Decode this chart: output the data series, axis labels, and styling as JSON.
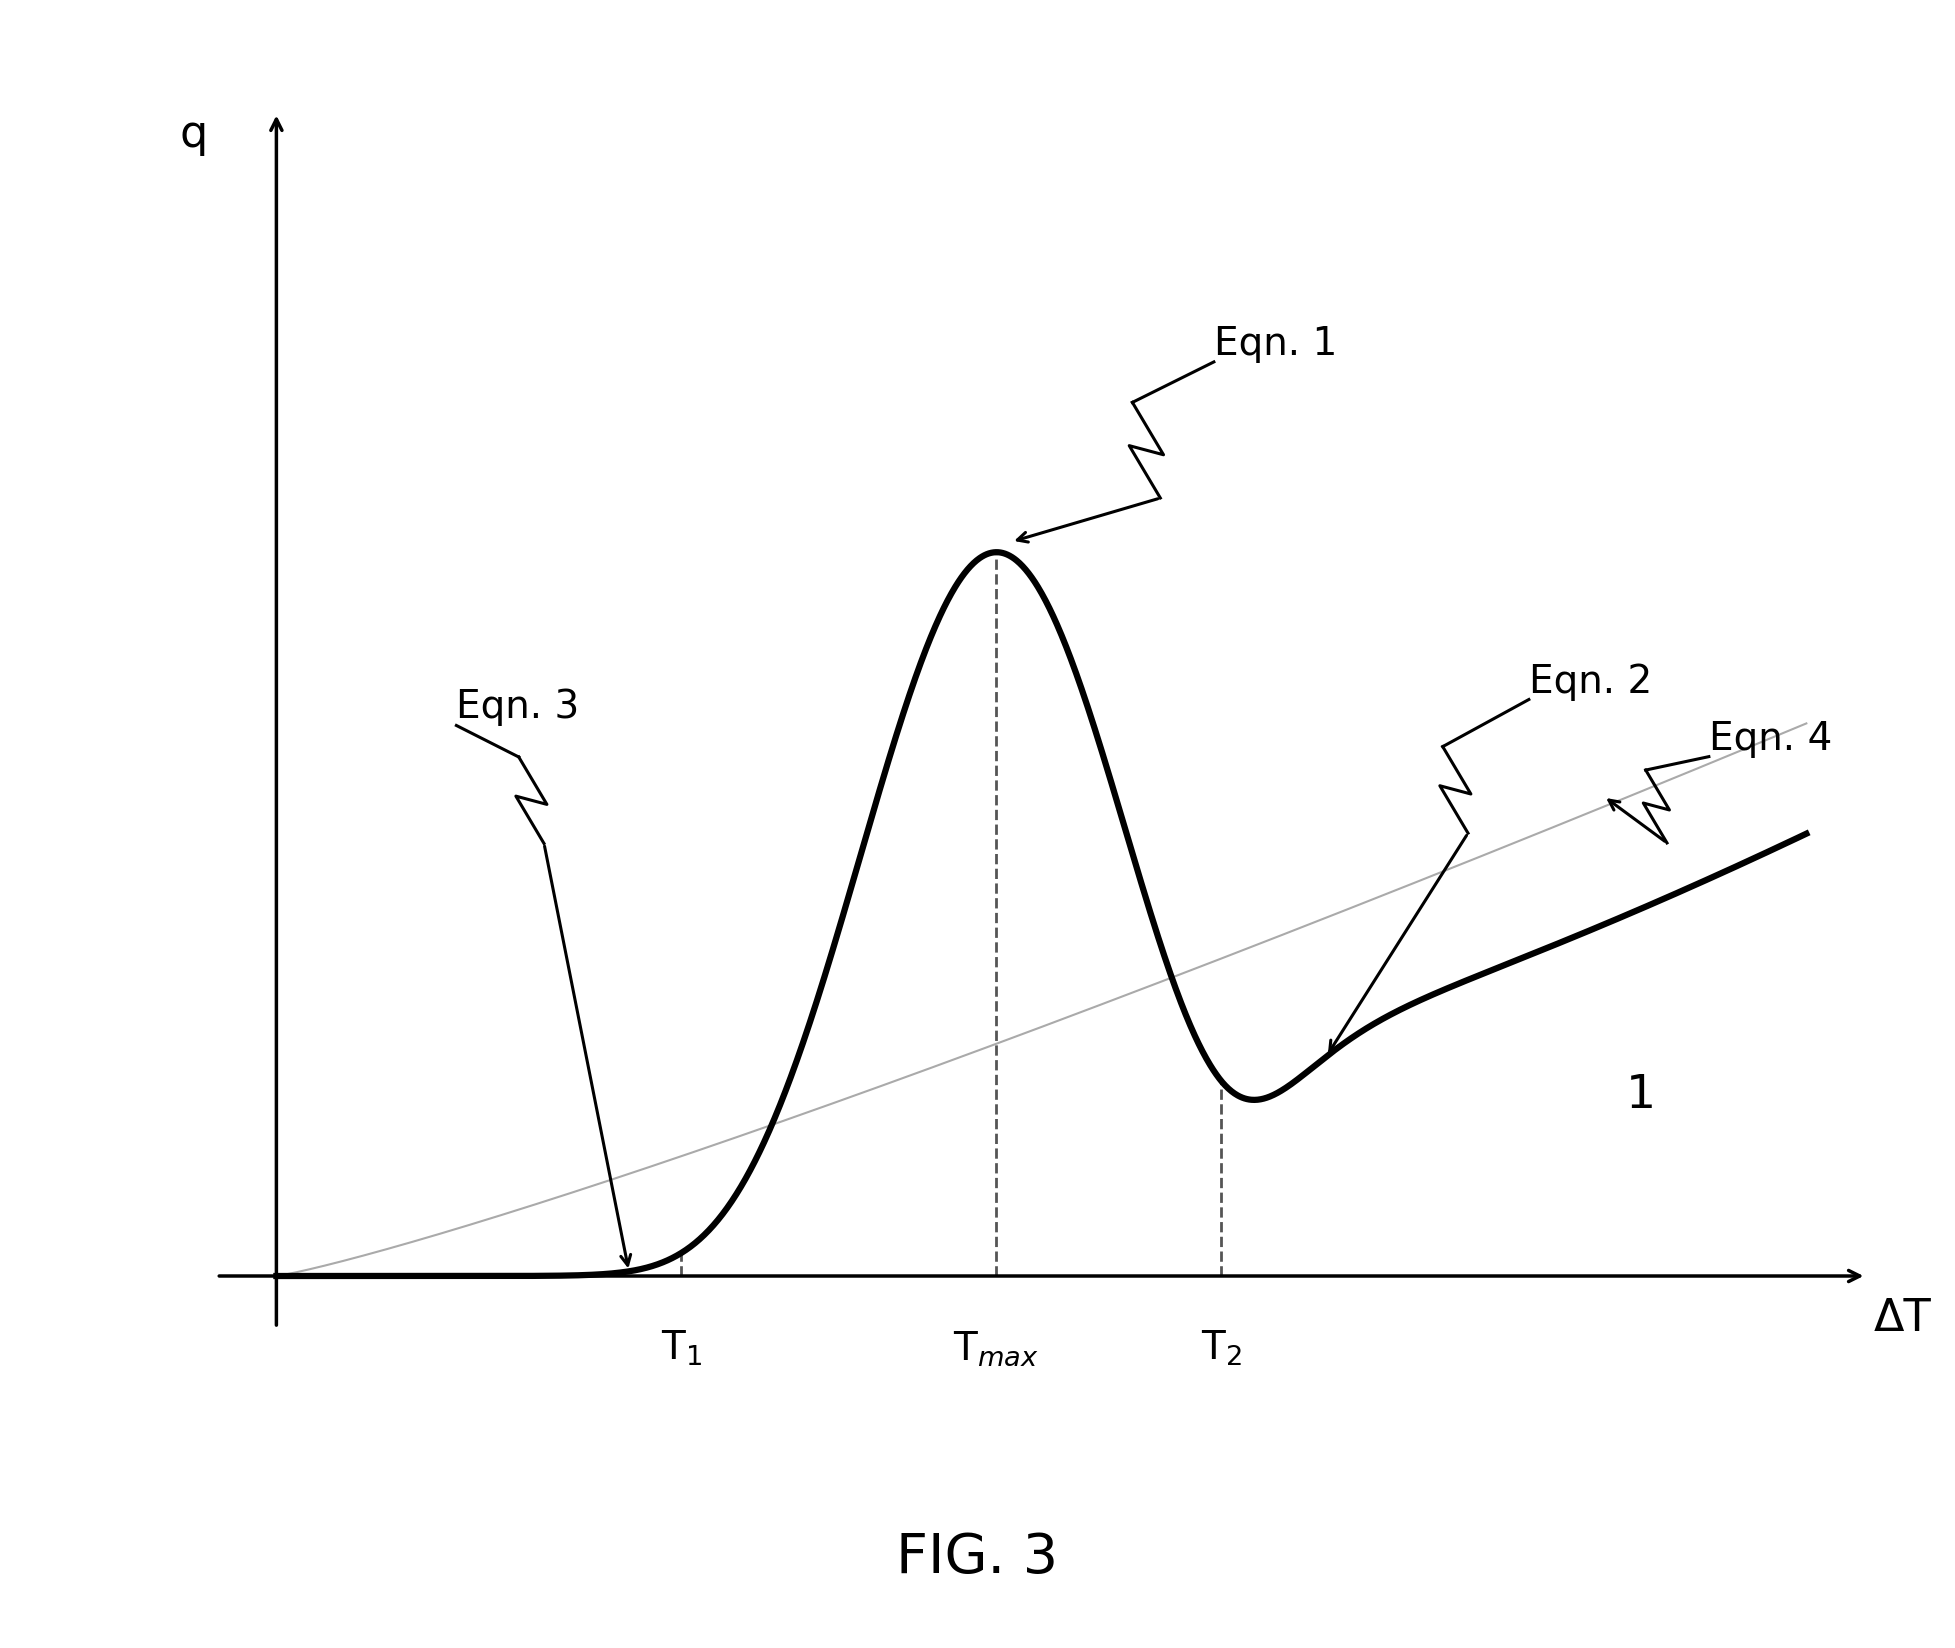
{
  "title": "FIG. 3",
  "xlabel": "ΔT",
  "ylabel": "q",
  "T1": 0.27,
  "Tmax": 0.48,
  "T2": 0.63,
  "eqn1_label": "Eqn. 1",
  "eqn2_label": "Eqn. 2",
  "eqn3_label": "Eqn. 3",
  "eqn4_label": "Eqn. 4",
  "label1": "1",
  "background_color": "#ffffff",
  "main_curve_color": "#000000",
  "thin_curve_color": "#aaaaaa",
  "dashed_color": "#555555",
  "title_fontsize": 40,
  "label_fontsize": 32,
  "annot_fontsize": 28,
  "tick_fontsize": 28,
  "main_lw": 4.5,
  "thin_lw": 1.5,
  "axis_lw": 2.5,
  "dashed_lw": 2.0
}
